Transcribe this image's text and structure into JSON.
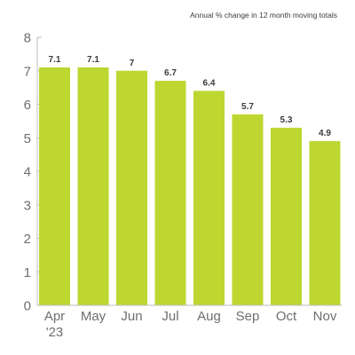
{
  "chart_data": {
    "type": "bar",
    "title": "",
    "subtitle": "Annual % change in 12 month moving totals",
    "xlabel": "",
    "ylabel": "",
    "categories": [
      "Apr",
      "May",
      "Jun",
      "Jul",
      "Aug",
      "Sep",
      "Oct",
      "Nov"
    ],
    "category_sublabels": [
      "'23",
      "",
      "",
      "",
      "",
      "",
      "",
      ""
    ],
    "values": [
      7.1,
      7.1,
      7,
      6.7,
      6.4,
      5.7,
      5.3,
      4.9
    ],
    "data_labels": [
      "7.1",
      "7.1",
      "7",
      "6.7",
      "6.4",
      "5.7",
      "5.3",
      "4.9"
    ],
    "ylim": [
      0,
      8
    ],
    "yticks": [
      0,
      1,
      2,
      3,
      4,
      5,
      6,
      7,
      8
    ],
    "grid": false,
    "legend": "none",
    "bar_color": "#bed630"
  }
}
